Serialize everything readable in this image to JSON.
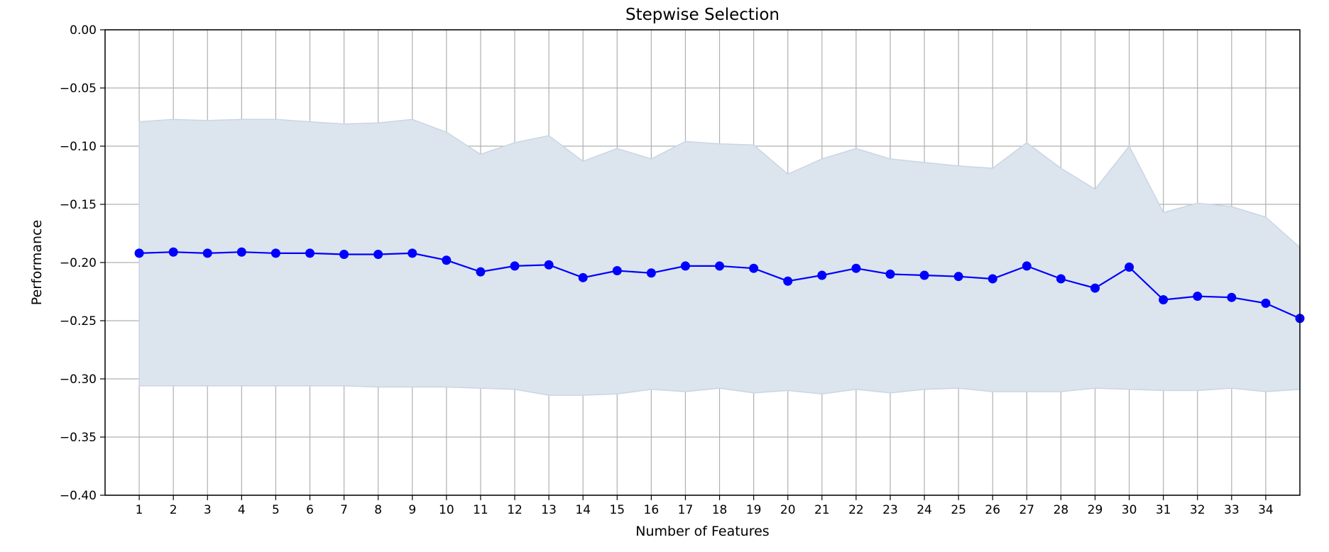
{
  "chart_data": {
    "type": "line",
    "title": "Stepwise Selection",
    "xlabel": "Number of Features",
    "ylabel": "Performance",
    "x": [
      1,
      2,
      3,
      4,
      5,
      6,
      7,
      8,
      9,
      10,
      11,
      12,
      13,
      14,
      15,
      16,
      17,
      18,
      19,
      20,
      21,
      22,
      23,
      24,
      25,
      26,
      27,
      28,
      29,
      30,
      31,
      32,
      33,
      34,
      35
    ],
    "x_tick_labels": [
      "1",
      "2",
      "3",
      "4",
      "5",
      "6",
      "7",
      "8",
      "9",
      "10",
      "11",
      "12",
      "13",
      "14",
      "15",
      "16",
      "17",
      "18",
      "19",
      "20",
      "21",
      "22",
      "23",
      "24",
      "25",
      "26",
      "27",
      "28",
      "29",
      "30",
      "31",
      "32",
      "33",
      "34"
    ],
    "y_ticks": [
      0.0,
      -0.05,
      -0.1,
      -0.15,
      -0.2,
      -0.25,
      -0.3,
      -0.35,
      -0.4
    ],
    "y_tick_labels": [
      "0.00",
      "−0.05",
      "−0.10",
      "−0.15",
      "−0.20",
      "−0.25",
      "−0.30",
      "−0.35",
      "−0.40"
    ],
    "xlim": [
      0,
      35
    ],
    "ylim": [
      -0.4,
      0.0
    ],
    "grid": true,
    "series": [
      {
        "values": [
          -0.192,
          -0.191,
          -0.192,
          -0.191,
          -0.192,
          -0.192,
          -0.193,
          -0.193,
          -0.192,
          -0.198,
          -0.208,
          -0.203,
          -0.202,
          -0.213,
          -0.207,
          -0.209,
          -0.203,
          -0.203,
          -0.205,
          -0.216,
          -0.211,
          -0.205,
          -0.21,
          -0.211,
          -0.212,
          -0.214,
          -0.203,
          -0.214,
          -0.222,
          -0.204,
          -0.232,
          -0.229,
          -0.23,
          -0.235,
          -0.248
        ],
        "upper": [
          -0.079,
          -0.077,
          -0.078,
          -0.077,
          -0.077,
          -0.079,
          -0.081,
          -0.08,
          -0.077,
          -0.088,
          -0.107,
          -0.097,
          -0.091,
          -0.113,
          -0.102,
          -0.111,
          -0.096,
          -0.098,
          -0.099,
          -0.124,
          -0.111,
          -0.102,
          -0.111,
          -0.114,
          -0.117,
          -0.119,
          -0.097,
          -0.119,
          -0.137,
          -0.1,
          -0.157,
          -0.149,
          -0.152,
          -0.161,
          -0.187
        ],
        "lower": [
          -0.306,
          -0.306,
          -0.306,
          -0.306,
          -0.306,
          -0.306,
          -0.306,
          -0.307,
          -0.307,
          -0.307,
          -0.308,
          -0.309,
          -0.314,
          -0.314,
          -0.313,
          -0.309,
          -0.311,
          -0.308,
          -0.312,
          -0.31,
          -0.313,
          -0.309,
          -0.312,
          -0.309,
          -0.308,
          -0.311,
          -0.311,
          -0.311,
          -0.308,
          -0.309,
          -0.31,
          -0.31,
          -0.308,
          -0.311,
          -0.309
        ],
        "color": "#0000ff",
        "band_color": "#dce5ee"
      }
    ]
  }
}
